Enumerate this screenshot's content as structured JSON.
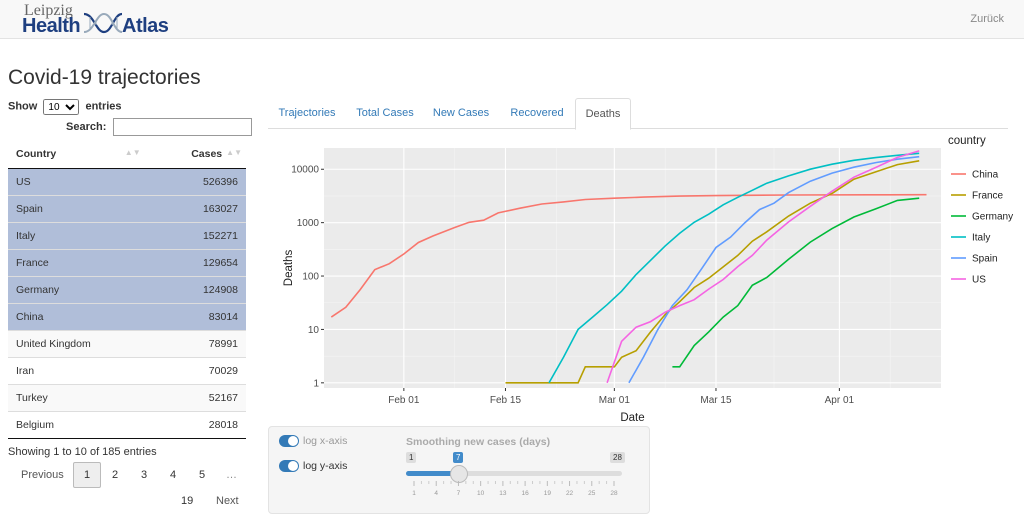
{
  "navbar": {
    "brand_city": "Leipzig",
    "brand_word1": "Health",
    "brand_word2": "Atlas",
    "back_label": "Zurück"
  },
  "page_title": "Covid-19 trajectories",
  "table_controls": {
    "show_label": "Show",
    "entries_value": "10",
    "entries_label": "entries",
    "search_label": "Search:"
  },
  "table": {
    "columns": [
      "Country",
      "Cases"
    ],
    "rows": [
      {
        "country": "US",
        "cases": "526396",
        "selected": true
      },
      {
        "country": "Spain",
        "cases": "163027",
        "selected": true
      },
      {
        "country": "Italy",
        "cases": "152271",
        "selected": true
      },
      {
        "country": "France",
        "cases": "129654",
        "selected": true
      },
      {
        "country": "Germany",
        "cases": "124908",
        "selected": true
      },
      {
        "country": "China",
        "cases": "83014",
        "selected": true
      },
      {
        "country": "United Kingdom",
        "cases": "78991",
        "selected": false
      },
      {
        "country": "Iran",
        "cases": "70029",
        "selected": false
      },
      {
        "country": "Turkey",
        "cases": "52167",
        "selected": false
      },
      {
        "country": "Belgium",
        "cases": "28018",
        "selected": false
      }
    ],
    "info": "Showing 1 to 10 of 185 entries"
  },
  "pagination": {
    "previous": "Previous",
    "pages": [
      "1",
      "2",
      "3",
      "4",
      "5",
      "…"
    ],
    "last": "19",
    "next": "Next",
    "current": "1"
  },
  "tabs": [
    "Trajectories",
    "Total Cases",
    "New Cases",
    "Recovered",
    "Deaths"
  ],
  "active_tab": "Deaths",
  "controls": {
    "log_x_label": "log x-axis",
    "log_y_label": "log y-axis",
    "slider_title": "Smoothing new cases (days)",
    "slider_min": "1",
    "slider_max": "28",
    "slider_value": "7",
    "slider_ticks": [
      "1",
      "4",
      "7",
      "10",
      "13",
      "16",
      "19",
      "22",
      "25",
      "28"
    ]
  },
  "chart_data": {
    "type": "line",
    "xlabel": "Date",
    "ylabel": "Deaths",
    "x_ticks": [
      "Feb 01",
      "Feb 15",
      "Mar 01",
      "Mar 15",
      "Apr 01"
    ],
    "y_ticks": [
      "1",
      "10",
      "100",
      "1000",
      "10000"
    ],
    "y_scale": "log",
    "ylim": [
      0.8,
      25000
    ],
    "x_range": [
      "2020-01-21",
      "2020-04-15"
    ],
    "legend_title": "country",
    "legend_position": "right",
    "grid": true,
    "series": [
      {
        "name": "China",
        "color": "#F8766D",
        "points": [
          [
            "2020-01-22",
            17
          ],
          [
            "2020-01-24",
            26
          ],
          [
            "2020-01-26",
            56
          ],
          [
            "2020-01-28",
            132
          ],
          [
            "2020-01-30",
            170
          ],
          [
            "2020-02-01",
            259
          ],
          [
            "2020-02-03",
            425
          ],
          [
            "2020-02-05",
            563
          ],
          [
            "2020-02-08",
            811
          ],
          [
            "2020-02-10",
            1016
          ],
          [
            "2020-02-12",
            1113
          ],
          [
            "2020-02-14",
            1523
          ],
          [
            "2020-02-17",
            1868
          ],
          [
            "2020-02-20",
            2236
          ],
          [
            "2020-02-23",
            2442
          ],
          [
            "2020-02-26",
            2715
          ],
          [
            "2020-03-01",
            2870
          ],
          [
            "2020-03-05",
            3015
          ],
          [
            "2020-03-10",
            3140
          ],
          [
            "2020-03-15",
            3203
          ],
          [
            "2020-03-25",
            3287
          ],
          [
            "2020-04-05",
            3329
          ],
          [
            "2020-04-13",
            3341
          ]
        ]
      },
      {
        "name": "France",
        "color": "#B79F00",
        "points": [
          [
            "2020-02-15",
            1
          ],
          [
            "2020-02-25",
            1
          ],
          [
            "2020-02-26",
            2
          ],
          [
            "2020-03-01",
            2
          ],
          [
            "2020-03-02",
            3
          ],
          [
            "2020-03-04",
            4
          ],
          [
            "2020-03-06",
            9
          ],
          [
            "2020-03-08",
            19
          ],
          [
            "2020-03-10",
            33
          ],
          [
            "2020-03-12",
            61
          ],
          [
            "2020-03-14",
            91
          ],
          [
            "2020-03-16",
            148
          ],
          [
            "2020-03-18",
            244
          ],
          [
            "2020-03-20",
            450
          ],
          [
            "2020-03-22",
            674
          ],
          [
            "2020-03-25",
            1333
          ],
          [
            "2020-03-28",
            2314
          ],
          [
            "2020-03-31",
            3523
          ],
          [
            "2020-04-03",
            6507
          ],
          [
            "2020-04-06",
            8911
          ],
          [
            "2020-04-09",
            12210
          ],
          [
            "2020-04-12",
            14393
          ]
        ]
      },
      {
        "name": "Germany",
        "color": "#00BA38",
        "points": [
          [
            "2020-03-09",
            2
          ],
          [
            "2020-03-10",
            2
          ],
          [
            "2020-03-12",
            5
          ],
          [
            "2020-03-14",
            9
          ],
          [
            "2020-03-16",
            17
          ],
          [
            "2020-03-18",
            28
          ],
          [
            "2020-03-20",
            67
          ],
          [
            "2020-03-22",
            94
          ],
          [
            "2020-03-25",
            206
          ],
          [
            "2020-03-28",
            433
          ],
          [
            "2020-03-31",
            775
          ],
          [
            "2020-04-03",
            1275
          ],
          [
            "2020-04-06",
            1810
          ],
          [
            "2020-04-09",
            2607
          ],
          [
            "2020-04-12",
            2871
          ]
        ]
      },
      {
        "name": "Italy",
        "color": "#00BFC4",
        "points": [
          [
            "2020-02-21",
            1
          ],
          [
            "2020-02-23",
            3
          ],
          [
            "2020-02-25",
            10
          ],
          [
            "2020-02-27",
            17
          ],
          [
            "2020-02-29",
            29
          ],
          [
            "2020-03-02",
            52
          ],
          [
            "2020-03-04",
            107
          ],
          [
            "2020-03-06",
            197
          ],
          [
            "2020-03-08",
            366
          ],
          [
            "2020-03-10",
            631
          ],
          [
            "2020-03-12",
            1016
          ],
          [
            "2020-03-14",
            1441
          ],
          [
            "2020-03-16",
            2158
          ],
          [
            "2020-03-18",
            2978
          ],
          [
            "2020-03-20",
            4032
          ],
          [
            "2020-03-22",
            5476
          ],
          [
            "2020-03-25",
            7503
          ],
          [
            "2020-03-28",
            10023
          ],
          [
            "2020-03-31",
            12428
          ],
          [
            "2020-04-03",
            14681
          ],
          [
            "2020-04-06",
            16523
          ],
          [
            "2020-04-09",
            18279
          ],
          [
            "2020-04-12",
            19899
          ]
        ]
      },
      {
        "name": "Spain",
        "color": "#619CFF",
        "points": [
          [
            "2020-03-03",
            1
          ],
          [
            "2020-03-05",
            3
          ],
          [
            "2020-03-07",
            10
          ],
          [
            "2020-03-09",
            28
          ],
          [
            "2020-03-11",
            55
          ],
          [
            "2020-03-13",
            136
          ],
          [
            "2020-03-15",
            342
          ],
          [
            "2020-03-17",
            533
          ],
          [
            "2020-03-19",
            1002
          ],
          [
            "2020-03-21",
            1756
          ],
          [
            "2020-03-23",
            2311
          ],
          [
            "2020-03-25",
            3647
          ],
          [
            "2020-03-28",
            5982
          ],
          [
            "2020-03-31",
            8464
          ],
          [
            "2020-04-03",
            10935
          ],
          [
            "2020-04-06",
            13341
          ],
          [
            "2020-04-09",
            15447
          ],
          [
            "2020-04-12",
            17209
          ]
        ]
      },
      {
        "name": "US",
        "color": "#F564E3",
        "points": [
          [
            "2020-02-29",
            1
          ],
          [
            "2020-03-02",
            6
          ],
          [
            "2020-03-04",
            11
          ],
          [
            "2020-03-06",
            14
          ],
          [
            "2020-03-08",
            21
          ],
          [
            "2020-03-10",
            28
          ],
          [
            "2020-03-12",
            36
          ],
          [
            "2020-03-14",
            57
          ],
          [
            "2020-03-16",
            86
          ],
          [
            "2020-03-18",
            150
          ],
          [
            "2020-03-20",
            244
          ],
          [
            "2020-03-22",
            471
          ],
          [
            "2020-03-25",
            1031
          ],
          [
            "2020-03-28",
            2026
          ],
          [
            "2020-03-31",
            3873
          ],
          [
            "2020-04-03",
            7087
          ],
          [
            "2020-04-06",
            10783
          ],
          [
            "2020-04-09",
            16686
          ],
          [
            "2020-04-12",
            22020
          ]
        ]
      }
    ]
  }
}
